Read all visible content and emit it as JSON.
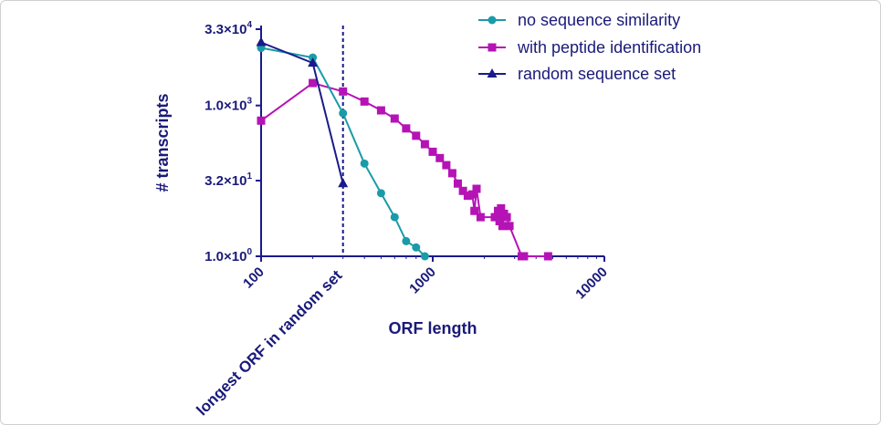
{
  "chart_data": {
    "type": "line",
    "xlabel": "ORF length",
    "ylabel": "# transcripts",
    "x_scale": "log",
    "y_scale": "log",
    "xlim": [
      100,
      10000
    ],
    "ylim": [
      1,
      33000
    ],
    "x_ticks": [
      {
        "value": 100,
        "label": "100"
      },
      {
        "value": 1000,
        "label": "1000"
      },
      {
        "value": 10000,
        "label": "10000"
      }
    ],
    "y_ticks": [
      {
        "value": 1,
        "mantissa": "1.0×10",
        "exp": "0"
      },
      {
        "value": 32,
        "mantissa": "3.2×10",
        "exp": "1"
      },
      {
        "value": 1000,
        "mantissa": "1.0×10",
        "exp": "3"
      },
      {
        "value": 33000,
        "mantissa": "3.3×10",
        "exp": "4"
      }
    ],
    "vline": {
      "x": 300,
      "label": "longest ORF in random set"
    },
    "legend_position": "top-right",
    "series": [
      {
        "name": "no sequence similarity",
        "color": "#1a9ba8",
        "marker": "circle",
        "points": [
          [
            100,
            14000
          ],
          [
            200,
            9000
          ],
          [
            300,
            700
          ],
          [
            400,
            70
          ],
          [
            500,
            18
          ],
          [
            600,
            6
          ],
          [
            700,
            2
          ],
          [
            800,
            1.5
          ],
          [
            900,
            1
          ]
        ]
      },
      {
        "name": "with peptide identification",
        "color": "#b513b5",
        "marker": "square",
        "points": [
          [
            100,
            500
          ],
          [
            200,
            2800
          ],
          [
            300,
            1900
          ],
          [
            400,
            1200
          ],
          [
            500,
            800
          ],
          [
            600,
            550
          ],
          [
            700,
            350
          ],
          [
            800,
            250
          ],
          [
            900,
            170
          ],
          [
            1000,
            120
          ],
          [
            1100,
            90
          ],
          [
            1200,
            65
          ],
          [
            1300,
            45
          ],
          [
            1400,
            28
          ],
          [
            1500,
            20
          ],
          [
            1600,
            16
          ],
          [
            1700,
            17
          ],
          [
            1750,
            8
          ],
          [
            1800,
            22
          ],
          [
            1900,
            6
          ],
          [
            2300,
            6
          ],
          [
            2400,
            8
          ],
          [
            2450,
            5
          ],
          [
            2500,
            9
          ],
          [
            2550,
            4
          ],
          [
            2600,
            7
          ],
          [
            2700,
            6
          ],
          [
            2800,
            4
          ],
          [
            3300,
            1
          ],
          [
            3400,
            1
          ],
          [
            4700,
            1
          ]
        ]
      },
      {
        "name": "random sequence set",
        "color": "#1a1a8c",
        "marker": "triangle",
        "points": [
          [
            100,
            18000
          ],
          [
            200,
            7000
          ],
          [
            300,
            28
          ]
        ]
      }
    ]
  }
}
